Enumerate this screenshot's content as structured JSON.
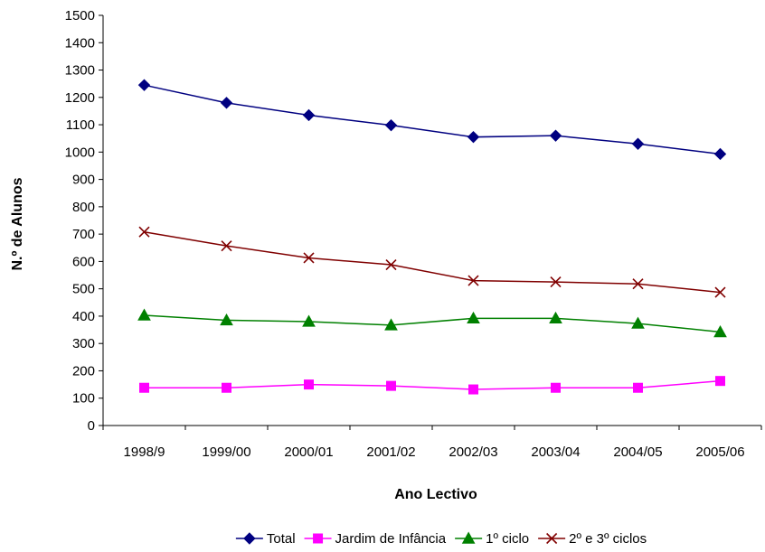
{
  "chart_data": {
    "type": "line",
    "xlabel": "Ano Lectivo",
    "ylabel": "N.º de Alunos",
    "ylim": [
      0,
      1500
    ],
    "ytick_step": 100,
    "grid": false,
    "legend_position": "bottom",
    "categories": [
      "1998/9",
      "1999/00",
      "2000/01",
      "2001/02",
      "2002/03",
      "2003/04",
      "2004/05",
      "2005/06"
    ],
    "series": [
      {
        "name": "Total",
        "color": "#000080",
        "marker": "diamond",
        "values": [
          1245,
          1180,
          1135,
          1098,
          1055,
          1060,
          1030,
          993
        ]
      },
      {
        "name": "Jardim de Infância",
        "color": "#FF00FF",
        "marker": "square",
        "values": [
          138,
          138,
          150,
          145,
          132,
          138,
          138,
          163
        ]
      },
      {
        "name": "1º ciclo",
        "color": "#008000",
        "marker": "triangle",
        "values": [
          403,
          385,
          380,
          367,
          392,
          392,
          373,
          342
        ]
      },
      {
        "name": "2º e 3º ciclos",
        "color": "#800000",
        "marker": "x",
        "values": [
          708,
          657,
          613,
          588,
          530,
          525,
          518,
          487
        ]
      }
    ]
  }
}
